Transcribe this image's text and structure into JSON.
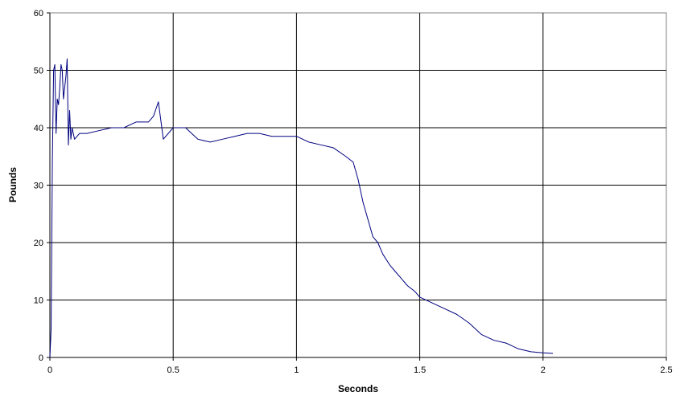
{
  "chart_data": {
    "type": "line",
    "title": "",
    "xlabel": "Seconds",
    "ylabel": "Pounds",
    "xlim": [
      0,
      2.5
    ],
    "ylim": [
      0,
      60
    ],
    "x_ticks": [
      0,
      0.5,
      1,
      1.5,
      2,
      2.5
    ],
    "x_tick_labels": [
      "0",
      "0.5",
      "1",
      "1.5",
      "2",
      "2.5"
    ],
    "y_ticks": [
      0,
      10,
      20,
      30,
      40,
      50,
      60
    ],
    "y_tick_labels": [
      "0",
      "10",
      "20",
      "30",
      "40",
      "50",
      "60"
    ],
    "grid": true,
    "legend": "none",
    "line_color": "#000080",
    "series": [
      {
        "x": [
          0,
          0.005,
          0.01,
          0.015,
          0.02,
          0.025,
          0.03,
          0.035,
          0.04,
          0.045,
          0.05,
          0.055,
          0.06,
          0.065,
          0.07,
          0.075,
          0.08,
          0.085,
          0.09,
          0.1,
          0.12,
          0.15,
          0.2,
          0.25,
          0.3,
          0.35,
          0.4,
          0.42,
          0.44,
          0.46,
          0.5,
          0.55,
          0.6,
          0.65,
          0.7,
          0.75,
          0.8,
          0.85,
          0.9,
          0.95,
          1.0,
          1.05,
          1.1,
          1.15,
          1.2,
          1.23,
          1.25,
          1.27,
          1.29,
          1.31,
          1.33,
          1.35,
          1.38,
          1.4,
          1.43,
          1.45,
          1.48,
          1.5,
          1.55,
          1.6,
          1.65,
          1.7,
          1.75,
          1.8,
          1.85,
          1.9,
          1.95,
          2.0,
          2.04
        ],
        "y": [
          0,
          5,
          34,
          50,
          51,
          39,
          45,
          44,
          47,
          51,
          50,
          45,
          47,
          49,
          52,
          37,
          43,
          38,
          40,
          38,
          39,
          39,
          39.5,
          40,
          40,
          41,
          41,
          42,
          44.5,
          38,
          40,
          40,
          38,
          37.5,
          38,
          38.5,
          39,
          39,
          38.5,
          38.5,
          38.5,
          37.5,
          37,
          36.5,
          35,
          34,
          31,
          27,
          24,
          21,
          20,
          18,
          16,
          15,
          13.5,
          12.5,
          11.5,
          10.5,
          9.5,
          8.5,
          7.5,
          6,
          4,
          3,
          2.5,
          1.5,
          1,
          0.8,
          0.7
        ]
      }
    ]
  }
}
